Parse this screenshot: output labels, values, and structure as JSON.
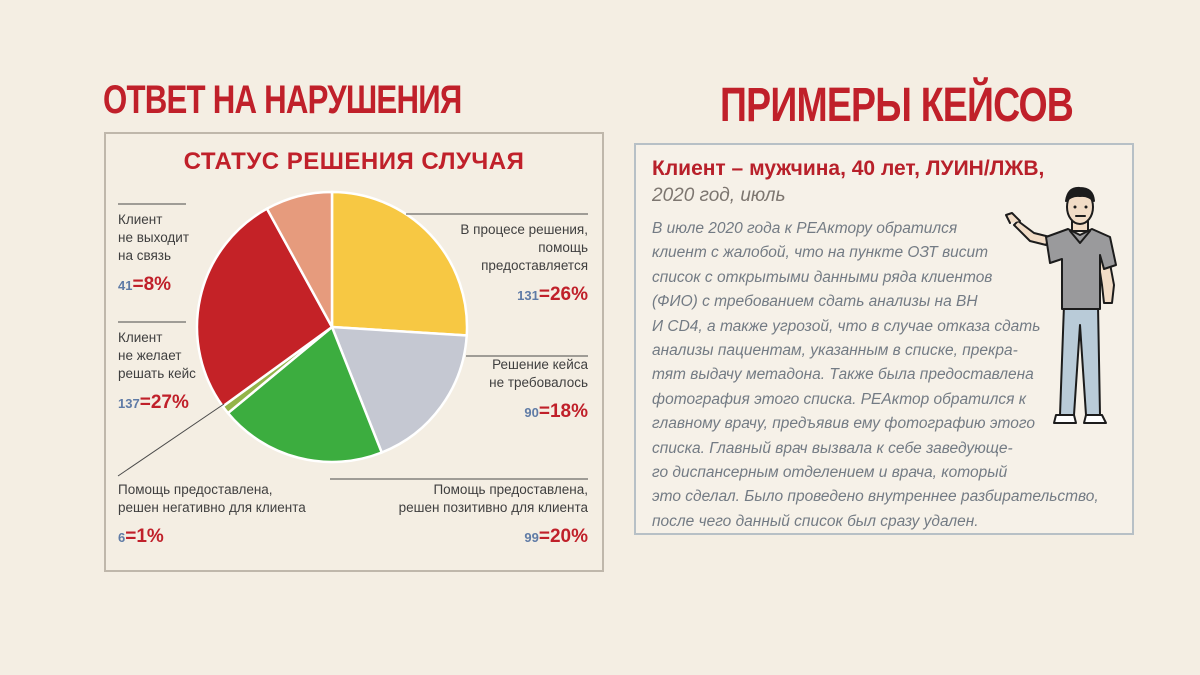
{
  "headings": {
    "left": "ОТВЕТ НА НАРУШЕНИЯ",
    "right": "ПРИМЕРЫ КЕЙСОВ"
  },
  "colors": {
    "accent_red": "#c0202a",
    "slice_yellow": "#f7c843",
    "slice_grey": "#c5c8d2",
    "slice_green": "#3cad3f",
    "slice_olive": "#93b449",
    "slice_red": "#c42227",
    "slice_salmon": "#e69b7d",
    "count_blue": "#5f7ba6"
  },
  "chart_data": {
    "type": "pie",
    "title": "СТАТУС РЕШЕНИЯ СЛУЧАЯ",
    "slices": [
      {
        "label": "В процесе решения, помощь предоставляется",
        "label_lines": [
          "В процесе решения,",
          "помощь",
          "предоставляется"
        ],
        "count": "131",
        "percent": "26%",
        "value": 26,
        "color": "#f7c843"
      },
      {
        "label": "Решение кейса не требовалось",
        "label_lines": [
          "Решение кейса",
          "не требовалось"
        ],
        "count": "90",
        "percent": "18%",
        "value": 18,
        "color": "#c5c8d2"
      },
      {
        "label": "Помощь предоставлена, решен позитивно для клиента",
        "label_lines": [
          "Помощь предоставлена,",
          "решен позитивно для клиента"
        ],
        "count": "99",
        "percent": "20%",
        "value": 20,
        "color": "#3cad3f"
      },
      {
        "label": "Помощь предоставлена, решен негативно для клиента",
        "label_lines": [
          "Помощь предоставлена,",
          "решен негативно для клиента"
        ],
        "count": "6",
        "percent": "1%",
        "value": 1,
        "color": "#93b449"
      },
      {
        "label": "Клиент не желает решать кейс",
        "label_lines": [
          "Клиент",
          "не желает",
          "решать кейс"
        ],
        "count": "137",
        "percent": "27%",
        "value": 27,
        "color": "#c42227"
      },
      {
        "label": "Клиент не выходит на связь",
        "label_lines": [
          "Клиент",
          "не выходит",
          "на связь"
        ],
        "count": "41",
        "percent": "8%",
        "value": 8,
        "color": "#e69b7d"
      }
    ]
  },
  "case": {
    "title": "Клиент – мужчина, 40 лет, ЛУИН/ЛЖВ,",
    "subtitle": "2020 год, июль",
    "lines": [
      "В июле 2020 года к РЕАктору обратился",
      "клиент с жалобой, что на пункте ОЗТ висит",
      "список с открытыми данными ряда клиентов",
      "(ФИО) с требованием сдать  анализы на ВН",
      "И CD4, а также угрозой, что в случае отказа сдать",
      "анализы пациентам, указанным в списке, прекра-",
      "тят выдачу метадона. Также была предоставлена",
      "фотография этого списка. РЕАктор обратился к",
      "главному врачу, предъявив ему фотографию этого",
      "списка. Главный врач вызвала к себе заведующе-",
      "го диспансерным отделением и врача, который",
      "это сделал. Было проведено внутреннее разбирательство,",
      "после чего данный список был сразу удален."
    ]
  }
}
